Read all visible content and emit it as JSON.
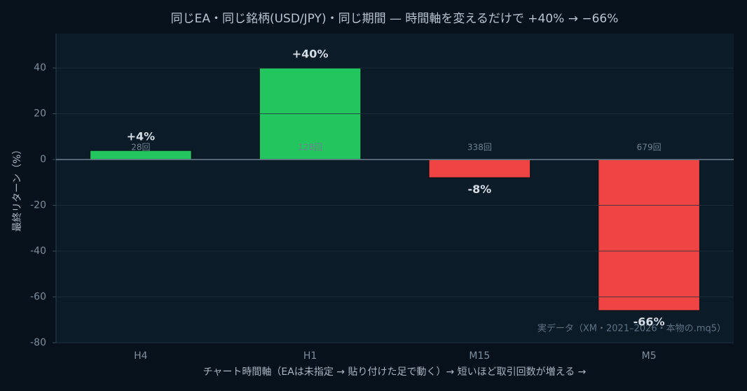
{
  "chart_data": {
    "type": "bar",
    "title": "同じEA・同じ銘柄(USD/JPY)・同じ期間 — 時間軸を変えるだけで +40% → −66%",
    "xlabel": "チャート時間軸（EAは未指定 → 貼り付けた足で動く）→ 短いほど取引回数が増える →",
    "ylabel": "最終リターン（%）",
    "categories": [
      "H4",
      "H1",
      "M15",
      "M5"
    ],
    "values": [
      4,
      40,
      -8,
      -66
    ],
    "value_labels": [
      "+4%",
      "+40%",
      "-8%",
      "-66%"
    ],
    "trade_labels": [
      "28回",
      "128回",
      "338回",
      "679回"
    ],
    "colors": [
      "#22c55e",
      "#22c55e",
      "#ef4444",
      "#ef4444"
    ],
    "ylim": [
      -80,
      55
    ],
    "yticks": [
      -80,
      -60,
      -40,
      -20,
      0,
      20,
      40
    ],
    "grid": true,
    "annotation": "実データ（XM・2021–2026・本物の.mq5）"
  }
}
